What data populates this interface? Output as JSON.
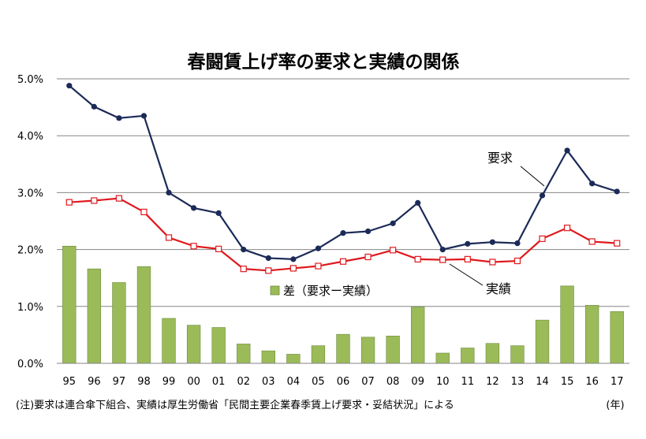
{
  "chart_data": {
    "type": "bar+line",
    "title": "春闘賃上げ率の要求と実績の関係",
    "categories": [
      "95",
      "96",
      "97",
      "98",
      "99",
      "00",
      "01",
      "02",
      "03",
      "04",
      "05",
      "06",
      "07",
      "08",
      "09",
      "10",
      "11",
      "12",
      "13",
      "14",
      "15",
      "16",
      "17"
    ],
    "x_unit_label": "(年)",
    "y_ticks": [
      "0.0%",
      "1.0%",
      "2.0%",
      "3.0%",
      "4.0%",
      "5.0%"
    ],
    "ylim": [
      0,
      5
    ],
    "grid": true,
    "series": [
      {
        "name": "要求",
        "type": "line",
        "color": "#1b2a57",
        "values": [
          4.88,
          4.51,
          4.31,
          4.35,
          3.0,
          2.73,
          2.64,
          2.0,
          1.85,
          1.83,
          2.02,
          2.29,
          2.32,
          2.46,
          2.82,
          2.0,
          2.1,
          2.13,
          2.11,
          2.95,
          3.74,
          3.16,
          3.02
        ]
      },
      {
        "name": "実績",
        "type": "line",
        "color": "#e0191e",
        "values": [
          2.83,
          2.86,
          2.9,
          2.66,
          2.21,
          2.06,
          2.01,
          1.66,
          1.63,
          1.67,
          1.71,
          1.79,
          1.87,
          1.99,
          1.83,
          1.82,
          1.83,
          1.78,
          1.8,
          2.19,
          2.38,
          2.14,
          2.11
        ]
      },
      {
        "name": "差（要求ー実績）",
        "type": "bar",
        "color": "#9bbb59",
        "values": [
          2.06,
          1.66,
          1.42,
          1.7,
          0.79,
          0.67,
          0.63,
          0.34,
          0.22,
          0.16,
          0.31,
          0.51,
          0.46,
          0.48,
          0.99,
          0.18,
          0.27,
          0.35,
          0.31,
          0.76,
          1.36,
          1.02,
          0.91
        ]
      }
    ],
    "legend": {
      "label": "差（要求ー実績）",
      "placement": "middle"
    },
    "annotations": {
      "demand": "要求",
      "actual": "実績"
    },
    "note": "(注)要求は連合傘下組合、実績は厚生労働省「民間主要企業春季賃上げ要求・妥結状況」による"
  }
}
